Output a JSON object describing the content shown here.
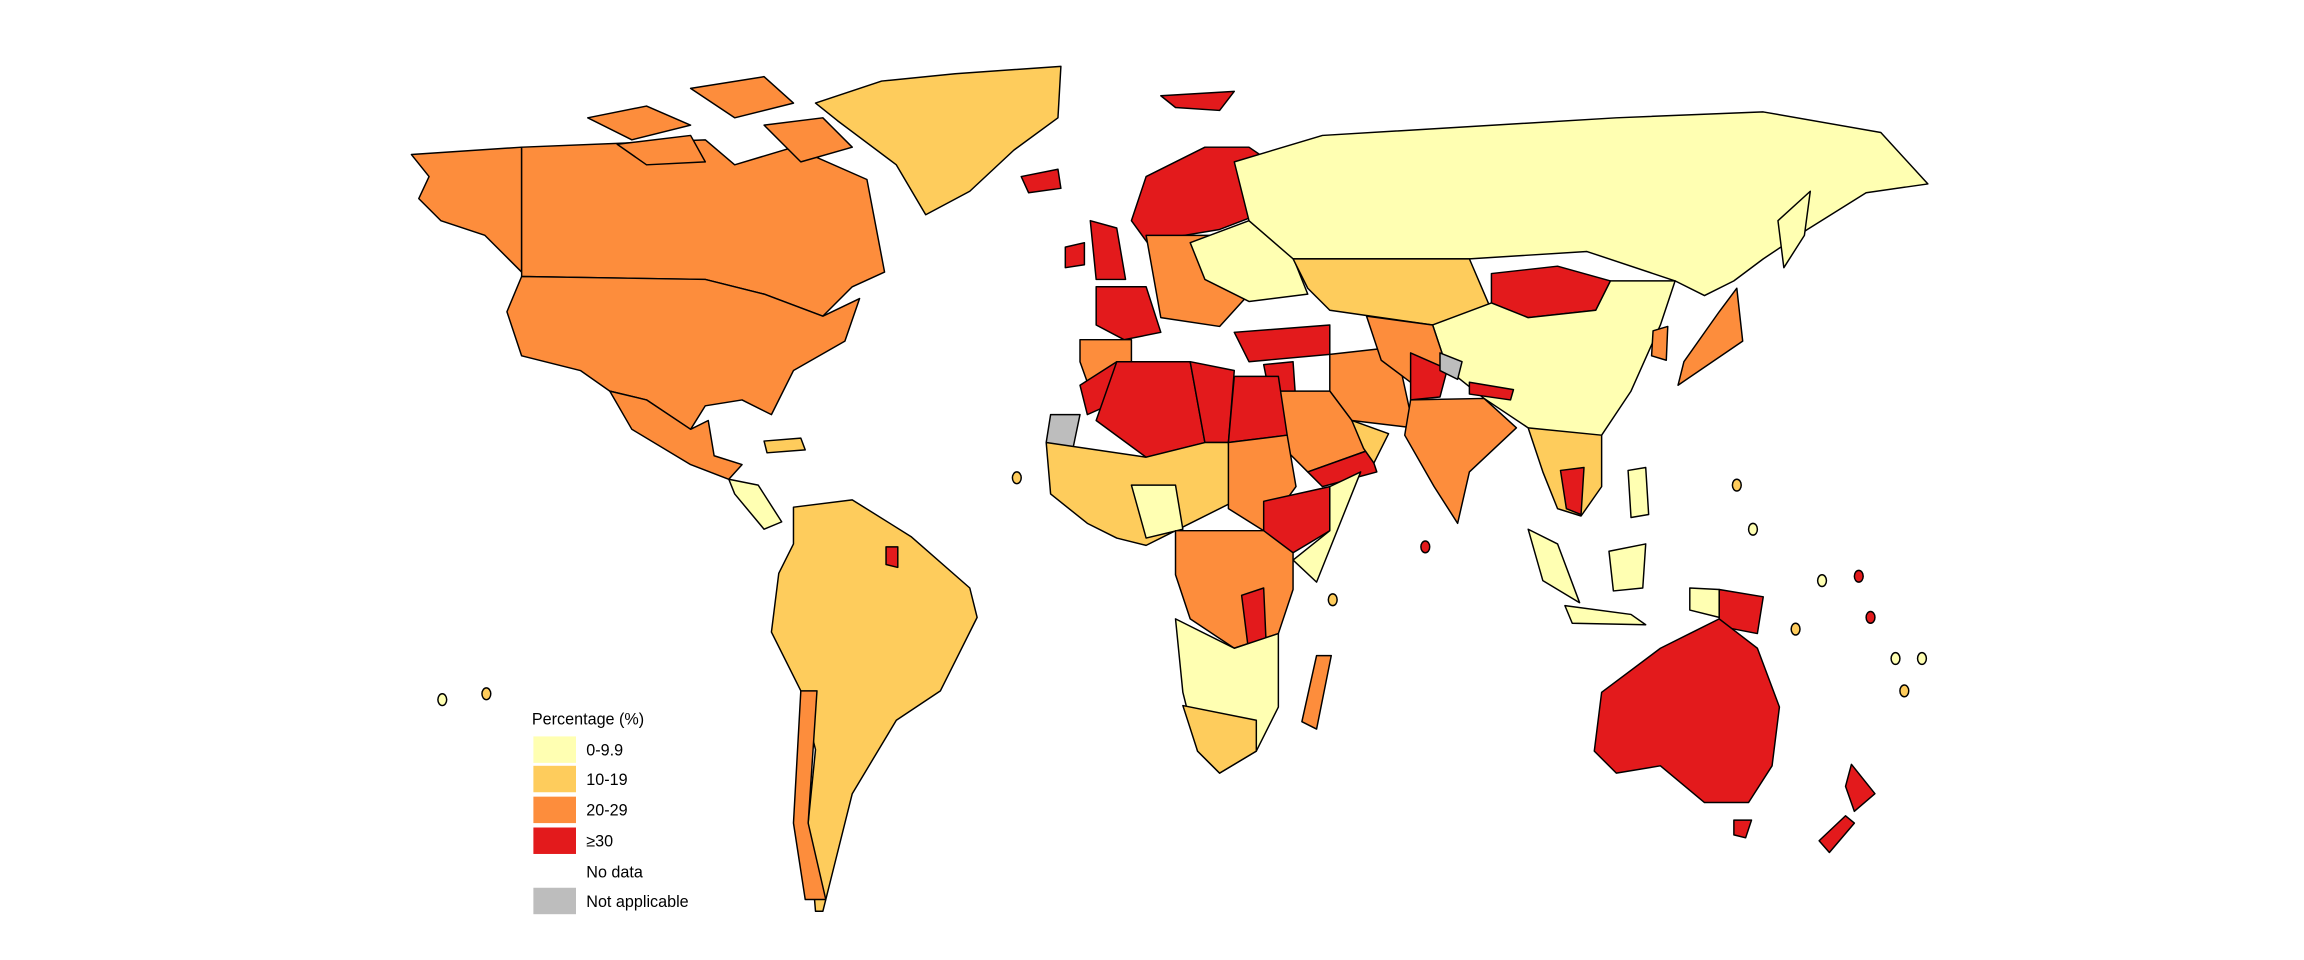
{
  "chart_data": {
    "type": "choropleth",
    "legend": {
      "title": "Percentage (%)",
      "placement": "bottom-left",
      "items": [
        {
          "key": "c0",
          "label": "0-9.9",
          "color": "#FFFFB2"
        },
        {
          "key": "c1",
          "label": "10-19",
          "color": "#FECC5C"
        },
        {
          "key": "c2",
          "label": "20-29",
          "color": "#FD8D3C"
        },
        {
          "key": "c3",
          "label": "≥30",
          "color": "#E31A1C"
        },
        {
          "key": "nd",
          "label": "No data",
          "color": "#FFFFFF"
        },
        {
          "key": "na",
          "label": "Not applicable",
          "color": "#BDBDBD"
        }
      ]
    },
    "border_color": "#000000",
    "background": "#FFFFFF"
  }
}
